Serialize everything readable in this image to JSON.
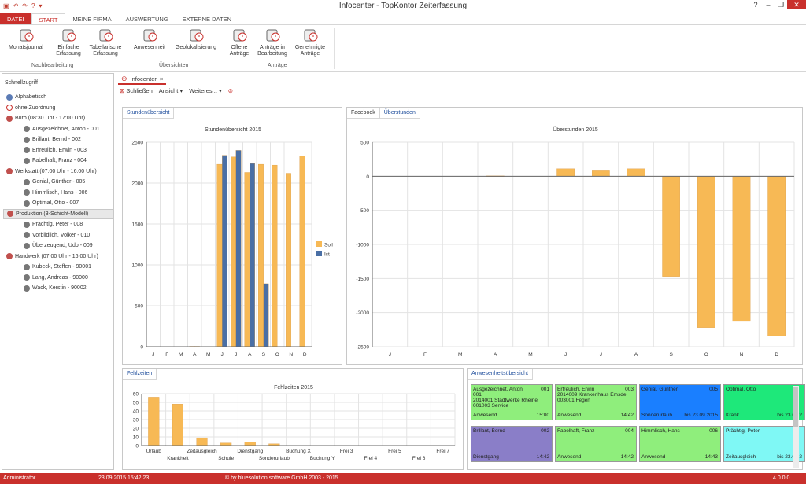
{
  "app": {
    "title": "Infocenter - TopKontor Zeiterfassung"
  },
  "tabs": [
    "DATEI",
    "START",
    "MEINE FIRMA",
    "AUSWERTUNG",
    "EXTERNE DATEN"
  ],
  "ribbon": {
    "buttons": [
      {
        "label": "Monatsjournal",
        "label2": "",
        "icon": "calendar-clock-icon"
      },
      {
        "label": "Einfache",
        "label2": "Erfassung",
        "icon": "clock-edit-icon"
      },
      {
        "label": "Tabellarische",
        "label2": "Erfassung",
        "icon": "table-clock-icon"
      },
      {
        "label": "Anwesenheit",
        "label2": "",
        "icon": "door-person-icon"
      },
      {
        "label": "Geolokalisierung",
        "label2": "",
        "icon": "map-pin-icon"
      },
      {
        "label": "Offene",
        "label2": "Anträge",
        "icon": "clipboard-clock-icon"
      },
      {
        "label": "Anträge in",
        "label2": "Bearbeitung",
        "icon": "clipboard-search-icon"
      },
      {
        "label": "Genehmigte",
        "label2": "Anträge",
        "icon": "clipboard-check-icon"
      }
    ],
    "groups": [
      "Nachbearbeitung",
      "Übersichten",
      "Anträge"
    ]
  },
  "sidebar": {
    "title": "Schnellzugriff",
    "items": [
      {
        "label": "Alphabetisch",
        "level": 0,
        "type": "sort"
      },
      {
        "label": "ohne Zuordnung",
        "level": 0,
        "type": "none"
      },
      {
        "label": "Büro (08:30 Uhr - 17:00 Uhr)",
        "level": 0,
        "type": "group"
      },
      {
        "label": "Ausgezeichnet, Anton - 001",
        "level": 1,
        "type": "person"
      },
      {
        "label": "Brillant, Bernd - 002",
        "level": 1,
        "type": "person"
      },
      {
        "label": "Erfreulich, Erwin - 003",
        "level": 1,
        "type": "person"
      },
      {
        "label": "Fabelhaft, Franz - 004",
        "level": 1,
        "type": "person"
      },
      {
        "label": "Werkstatt (07:00 Uhr - 16:00 Uhr)",
        "level": 0,
        "type": "group"
      },
      {
        "label": "Genial, Günther - 005",
        "level": 1,
        "type": "person"
      },
      {
        "label": "Himmlisch, Hans - 006",
        "level": 1,
        "type": "person"
      },
      {
        "label": "Optimal, Otto - 007",
        "level": 1,
        "type": "person"
      },
      {
        "label": "Produktion (3-Schicht-Modell)",
        "level": 0,
        "type": "group",
        "selected": true
      },
      {
        "label": "Prächtig, Peter - 008",
        "level": 1,
        "type": "person"
      },
      {
        "label": "Vorbildlich, Volker - 010",
        "level": 1,
        "type": "person"
      },
      {
        "label": "Überzeugend, Udo - 009",
        "level": 1,
        "type": "person"
      },
      {
        "label": "Handwerk (07:00 Uhr - 16:00 Uhr)",
        "level": 0,
        "type": "group"
      },
      {
        "label": "Kubeck, Steffen - 90001",
        "level": 1,
        "type": "person"
      },
      {
        "label": "Lang, Andreas - 90000",
        "level": 1,
        "type": "person"
      },
      {
        "label": "Wack, Kerstin - 90002",
        "level": 1,
        "type": "person"
      }
    ]
  },
  "doc_tab": {
    "label": "Infocenter",
    "close": "×"
  },
  "toolbar": {
    "close": "Schließen",
    "view": "Ansicht",
    "more": "Weiteres..."
  },
  "panels": {
    "stunden": {
      "tabs": [
        "Stundenübersicht"
      ]
    },
    "ueber": {
      "tabs": [
        "Facebook",
        "Überstunden"
      ]
    },
    "fehl": {
      "tabs": [
        "Fehlzeiten"
      ]
    },
    "anw": {
      "tabs": [
        "Anwesenheitsübersicht"
      ]
    }
  },
  "chart_data": [
    {
      "type": "bar",
      "title": "Stundenübersicht 2015",
      "categories": [
        "J",
        "F",
        "M",
        "A",
        "M",
        "J",
        "J",
        "A",
        "S",
        "O",
        "N",
        "D"
      ],
      "series": [
        {
          "name": "Soll",
          "color": "#f7b955",
          "values": [
            0,
            0,
            0,
            5,
            0,
            2230,
            2320,
            2130,
            2230,
            2220,
            2120,
            2330
          ]
        },
        {
          "name": "Ist",
          "color": "#4a6fa5",
          "values": [
            0,
            0,
            0,
            5,
            0,
            2340,
            2400,
            2240,
            770,
            0,
            0,
            0
          ]
        }
      ],
      "ylim": [
        0,
        2500
      ],
      "yticks": [
        0,
        500,
        1000,
        1500,
        2000,
        2500
      ],
      "legend": "right"
    },
    {
      "type": "bar",
      "title": "Überstunden 2015",
      "categories": [
        "J",
        "F",
        "M",
        "A",
        "M",
        "J",
        "J",
        "A",
        "S",
        "O",
        "N",
        "D"
      ],
      "series": [
        {
          "name": "",
          "color": "#f7b955",
          "values": [
            0,
            0,
            0,
            5,
            0,
            110,
            80,
            110,
            -1470,
            -2220,
            -2130,
            -2340
          ]
        }
      ],
      "ylim": [
        -2500,
        500
      ],
      "yticks": [
        -2500,
        -2000,
        -1500,
        -1000,
        -500,
        0,
        500
      ]
    },
    {
      "type": "bar",
      "title": "Fehlzeiten 2015",
      "categories": [
        "Urlaub",
        "Krankheit",
        "Zeitausgleich",
        "Schule",
        "Dienstgang",
        "Sonderurlaub",
        "Buchung X",
        "Buchung Y",
        "Frei 3",
        "Frei 4",
        "Frei 5",
        "Frei 6",
        "Frei 7"
      ],
      "series": [
        {
          "name": "",
          "color": "#f7b955",
          "values": [
            56,
            48,
            9,
            3,
            4,
            2,
            0,
            0,
            0,
            0,
            0,
            0,
            0
          ]
        }
      ],
      "ylim": [
        0,
        60
      ],
      "yticks": [
        0,
        10,
        20,
        30,
        40,
        50,
        60
      ]
    }
  ],
  "attendance": [
    {
      "name": "Ausgezeichnet, Anton",
      "num": "001",
      "line1": "001",
      "line2": "2014001 Stadtwerke Rheine",
      "line3": "001003 Service",
      "status": "Anwesend",
      "time": "15:00",
      "color": "#8fee7c"
    },
    {
      "name": "Erfreulich, Erwin",
      "num": "003",
      "line1": "",
      "line2": "2014009 Krankenhaus Emsde",
      "line3": "003001 Fegen",
      "status": "Anwesend",
      "time": "14:42",
      "color": "#8fee7c"
    },
    {
      "name": "Genial, Günther",
      "num": "005",
      "line1": "",
      "line2": "",
      "line3": "",
      "status": "Sonderurlaub",
      "time": "bis 23.09.2015",
      "color": "#1a7fff"
    },
    {
      "name": "Optimal, Otto",
      "num": "",
      "line1": "",
      "line2": "",
      "line3": "",
      "status": "Krank",
      "time": "bis 23.09.2",
      "color": "#1ee87a"
    },
    {
      "name": "Brillant, Bernd",
      "num": "002",
      "line1": "",
      "line2": "",
      "line3": "",
      "status": "Dienstgang",
      "time": "14:42",
      "color": "#8a7ec8"
    },
    {
      "name": "Fabelhaft, Franz",
      "num": "004",
      "line1": "",
      "line2": "",
      "line3": "",
      "status": "Anwesend",
      "time": "14:42",
      "color": "#8fee7c"
    },
    {
      "name": "Himmlisch, Hans",
      "num": "006",
      "line1": "",
      "line2": "",
      "line3": "",
      "status": "Anwesend",
      "time": "14:43",
      "color": "#8fee7c"
    },
    {
      "name": "Prächtig, Peter",
      "num": "",
      "line1": "",
      "line2": "",
      "line3": "",
      "status": "Zeitausgleich",
      "time": "bis 23.09.2",
      "color": "#7ff8f5"
    }
  ],
  "status": {
    "user": "Administrator",
    "datetime": "23.09.2015 15:42:23",
    "copyright": "© by bluesolution software GmbH 2003 - 2015",
    "version": "4.0.0.0"
  }
}
